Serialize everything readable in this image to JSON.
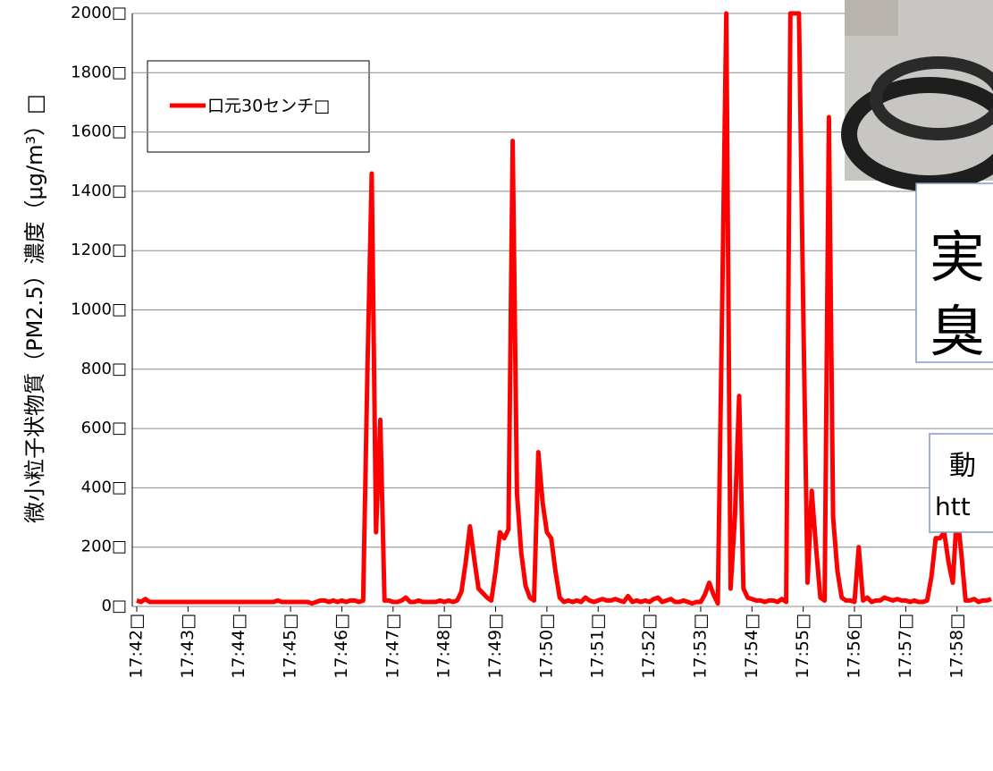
{
  "chart_data": {
    "type": "line",
    "y_label": "微小粒子状物質（PM2.5）濃度（μg/m³）□",
    "categories": [
      "17:42□",
      null,
      null,
      null,
      null,
      null,
      null,
      null,
      null,
      null,
      null,
      null,
      "17:43□",
      null,
      null,
      null,
      null,
      null,
      null,
      null,
      null,
      null,
      null,
      null,
      "17:44□",
      null,
      null,
      null,
      null,
      null,
      null,
      null,
      null,
      null,
      null,
      null,
      "17:45□",
      null,
      null,
      null,
      null,
      null,
      null,
      null,
      null,
      null,
      null,
      null,
      "17:46□",
      null,
      null,
      null,
      null,
      null,
      null,
      null,
      null,
      null,
      null,
      null,
      "17:47□",
      null,
      null,
      null,
      null,
      null,
      null,
      null,
      null,
      null,
      null,
      null,
      "17:48□",
      null,
      null,
      null,
      null,
      null,
      null,
      null,
      null,
      null,
      null,
      null,
      "17:49□",
      null,
      null,
      null,
      null,
      null,
      null,
      null,
      null,
      null,
      null,
      null,
      "17:50□",
      null,
      null,
      null,
      null,
      null,
      null,
      null,
      null,
      null,
      null,
      null,
      "17:51□",
      null,
      null,
      null,
      null,
      null,
      null,
      null,
      null,
      null,
      null,
      null,
      "17:52□",
      null,
      null,
      null,
      null,
      null,
      null,
      null,
      null,
      null,
      null,
      null,
      "17:53□",
      null,
      null,
      null,
      null,
      null,
      null,
      null,
      null,
      null,
      null,
      null,
      "17:54□",
      null,
      null,
      null,
      null,
      null,
      null,
      null,
      null,
      null,
      null,
      null,
      "17:55□",
      null,
      null,
      null,
      null,
      null,
      null,
      null,
      null,
      null,
      null,
      null,
      "17:56□",
      null,
      null,
      null,
      null,
      null,
      null,
      null,
      null,
      null,
      null,
      null,
      "17:57□",
      null,
      null,
      null,
      null,
      null,
      null,
      null,
      null,
      null,
      null,
      null,
      "17:58□",
      null,
      null,
      null,
      null,
      null,
      null,
      null,
      null
    ],
    "series": [
      {
        "name": "口元30センチ□",
        "color": "#ff0000",
        "values": [
          20,
          15,
          25,
          15,
          15,
          15,
          15,
          15,
          15,
          15,
          15,
          15,
          15,
          15,
          15,
          15,
          15,
          15,
          15,
          15,
          15,
          15,
          15,
          15,
          15,
          15,
          15,
          15,
          15,
          15,
          15,
          15,
          15,
          20,
          15,
          15,
          15,
          15,
          15,
          15,
          15,
          10,
          15,
          20,
          20,
          15,
          20,
          15,
          20,
          15,
          20,
          20,
          15,
          20,
          800,
          1460,
          250,
          630,
          20,
          20,
          15,
          15,
          20,
          30,
          15,
          15,
          20,
          15,
          15,
          15,
          15,
          20,
          15,
          20,
          15,
          20,
          50,
          150,
          270,
          160,
          60,
          45,
          30,
          20,
          120,
          250,
          230,
          260,
          1570,
          380,
          180,
          70,
          30,
          20,
          520,
          350,
          250,
          230,
          120,
          30,
          15,
          20,
          15,
          20,
          15,
          30,
          20,
          15,
          20,
          25,
          20,
          20,
          25,
          20,
          15,
          35,
          15,
          20,
          15,
          20,
          15,
          25,
          30,
          15,
          20,
          25,
          15,
          15,
          20,
          15,
          10,
          15,
          15,
          40,
          80,
          40,
          10,
          1000,
          2000,
          60,
          300,
          710,
          60,
          30,
          25,
          20,
          20,
          15,
          20,
          20,
          15,
          25,
          15,
          2000,
          2000,
          2000,
          1000,
          80,
          390,
          200,
          30,
          20,
          1650,
          300,
          120,
          30,
          20,
          20,
          15,
          200,
          20,
          30,
          15,
          20,
          20,
          30,
          25,
          20,
          25,
          20,
          20,
          15,
          20,
          15,
          15,
          20,
          100,
          230,
          230,
          250,
          150,
          80,
          320,
          180,
          20,
          20,
          25,
          15,
          20,
          20,
          25
        ]
      }
    ],
    "ylim": [
      0,
      2000
    ],
    "yticks": [
      {
        "value": 0,
        "label": "0□"
      },
      {
        "value": 200,
        "label": "200□"
      },
      {
        "value": 400,
        "label": "400□"
      },
      {
        "value": 600,
        "label": "600□"
      },
      {
        "value": 800,
        "label": "800□"
      },
      {
        "value": 1000,
        "label": "1000□"
      },
      {
        "value": 1200,
        "label": "1200□"
      },
      {
        "value": 1400,
        "label": "1400□"
      },
      {
        "value": 1600,
        "label": "1600□"
      },
      {
        "value": 1800,
        "label": "1800□"
      },
      {
        "value": 2000,
        "label": "2000□"
      }
    ],
    "grid": true,
    "legend": "upper left"
  },
  "overlay": {
    "box1": [
      "実",
      "臭"
    ],
    "box2": [
      "動",
      "htt"
    ]
  }
}
